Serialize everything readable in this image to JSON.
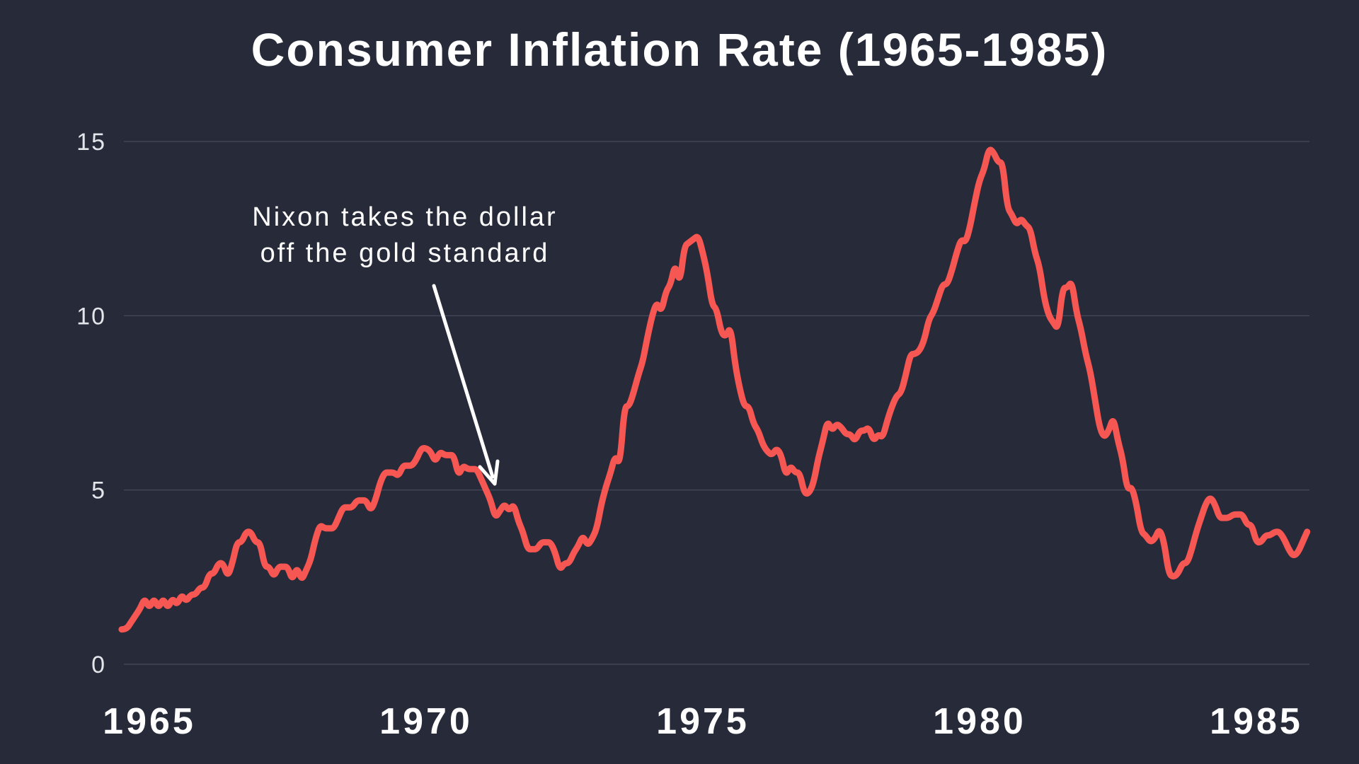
{
  "title": "Consumer Inflation Rate (1965-1985)",
  "annotation": {
    "line1": "Nixon takes the dollar",
    "line2": "off the gold standard"
  },
  "colors": {
    "background": "#272a39",
    "line": "#f75753",
    "grid": "#494d5c",
    "y_tick_label": "#e3e5ea",
    "x_tick_label": "#ffffff",
    "annotation_text": "#ffffff",
    "arrow": "#ffffff"
  },
  "chart_data": {
    "type": "line",
    "title": "Consumer Inflation Rate (1965-1985)",
    "xlabel": "",
    "ylabel": "",
    "unit": "percent (year-over-year inflation rate)",
    "x_ticks": [
      1965,
      1970,
      1975,
      1980,
      1985
    ],
    "y_ticks": [
      0,
      5,
      10,
      15
    ],
    "ylim": [
      0,
      15
    ],
    "xlim_years": [
      1964.5,
      1985.96
    ],
    "grid": "horizontal-only",
    "legend": "none",
    "series_start_year": 1964.5,
    "series_step_years": 0.0833333,
    "annotation": {
      "text": "Nixon takes the dollar off the gold standard",
      "points_to_year": 1971.3,
      "points_to_value": 5.0
    },
    "values": [
      1.0,
      1.0,
      1.2,
      1.4,
      1.6,
      1.9,
      1.6,
      1.9,
      1.6,
      1.9,
      1.6,
      1.9,
      1.7,
      2.0,
      1.8,
      2.0,
      2.0,
      2.2,
      2.2,
      2.6,
      2.6,
      2.9,
      2.9,
      2.5,
      2.9,
      3.5,
      3.5,
      3.8,
      3.8,
      3.5,
      3.5,
      2.8,
      2.8,
      2.5,
      2.8,
      2.8,
      2.8,
      2.4,
      2.8,
      2.4,
      2.7,
      3.0,
      3.6,
      4.0,
      3.9,
      3.9,
      3.9,
      4.2,
      4.5,
      4.5,
      4.5,
      4.7,
      4.7,
      4.7,
      4.4,
      4.7,
      5.2,
      5.5,
      5.5,
      5.5,
      5.4,
      5.7,
      5.7,
      5.7,
      5.9,
      6.2,
      6.2,
      6.1,
      5.8,
      6.1,
      6.0,
      6.0,
      6.0,
      5.4,
      5.7,
      5.6,
      5.6,
      5.6,
      5.3,
      5.0,
      4.7,
      4.2,
      4.4,
      4.6,
      4.4,
      4.6,
      4.1,
      3.8,
      3.3,
      3.3,
      3.3,
      3.5,
      3.5,
      3.5,
      3.2,
      2.7,
      2.9,
      2.9,
      3.2,
      3.4,
      3.7,
      3.4,
      3.6,
      3.9,
      4.6,
      5.1,
      5.5,
      6.0,
      5.7,
      7.4,
      7.4,
      7.8,
      8.3,
      8.7,
      9.4,
      10.0,
      10.4,
      10.1,
      10.7,
      10.9,
      11.5,
      10.9,
      12.0,
      12.1,
      12.2,
      12.3,
      11.8,
      11.2,
      10.3,
      10.2,
      9.5,
      9.4,
      9.7,
      8.6,
      7.9,
      7.4,
      7.4,
      6.9,
      6.7,
      6.3,
      6.1,
      6.0,
      6.2,
      6.0,
      5.4,
      5.7,
      5.5,
      5.5,
      4.9,
      4.9,
      5.2,
      5.9,
      6.4,
      7.0,
      6.7,
      6.9,
      6.8,
      6.6,
      6.6,
      6.4,
      6.7,
      6.7,
      6.8,
      6.4,
      6.6,
      6.5,
      7.0,
      7.4,
      7.7,
      7.8,
      8.3,
      8.9,
      8.9,
      9.0,
      9.3,
      9.9,
      10.1,
      10.5,
      10.9,
      10.9,
      11.3,
      11.8,
      12.2,
      12.1,
      12.6,
      13.3,
      13.9,
      14.2,
      14.8,
      14.7,
      14.4,
      14.4,
      13.1,
      12.9,
      12.6,
      12.8,
      12.6,
      12.5,
      11.8,
      11.4,
      10.5,
      10.0,
      9.8,
      9.6,
      10.8,
      10.8,
      11.0,
      10.1,
      9.6,
      8.9,
      8.4,
      7.6,
      6.8,
      6.5,
      6.7,
      7.1,
      6.4,
      5.9,
      5.0,
      5.1,
      4.6,
      3.8,
      3.7,
      3.5,
      3.6,
      3.9,
      3.5,
      2.6,
      2.5,
      2.6,
      2.9,
      2.9,
      3.3,
      3.8,
      4.2,
      4.6,
      4.8,
      4.6,
      4.2,
      4.2,
      4.2,
      4.3,
      4.3,
      4.3,
      4.0,
      4.0,
      3.5,
      3.5,
      3.7,
      3.7,
      3.8,
      3.8,
      3.6,
      3.3,
      3.1,
      3.2,
      3.5,
      3.8
    ]
  }
}
